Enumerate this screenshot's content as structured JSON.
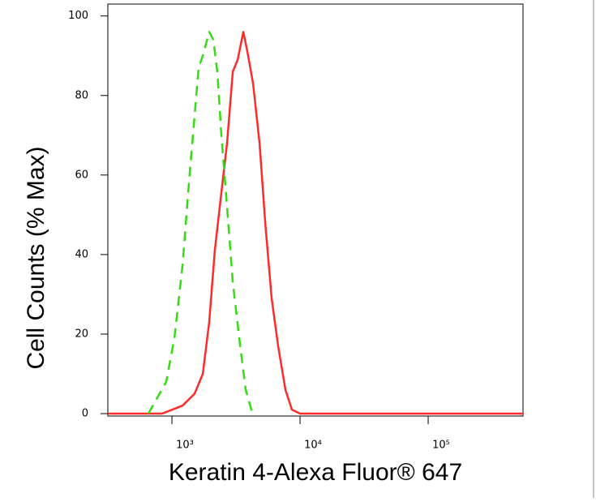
{
  "chart_data": {
    "type": "line",
    "xlabel": "Keratin 4-Alexa Fluor® 647",
    "ylabel": "Cell Counts (% Max)",
    "xscale": "log",
    "xlim": [
      316,
      550000
    ],
    "xticks": [
      {
        "value": 1000,
        "label": "10³"
      },
      {
        "value": 10000,
        "label": "10⁴"
      },
      {
        "value": 100000,
        "label": "10⁵"
      }
    ],
    "ylim": [
      0,
      103
    ],
    "yticks": [
      0,
      20,
      40,
      60,
      80,
      100
    ],
    "series": [
      {
        "color": "#ff2a2a",
        "linestyle": "solid",
        "x": [
          316,
          839,
          1208,
          1504,
          1740,
          1955,
          2162,
          2399,
          2692,
          2985,
          3259,
          3607,
          3880,
          4297,
          4831,
          5349,
          6005,
          6742,
          7692,
          8641,
          10000,
          550000
        ],
        "values": [
          0,
          0,
          2,
          5,
          10,
          23,
          41,
          54,
          68,
          86,
          89,
          96,
          91,
          83,
          68,
          48,
          29,
          17,
          6,
          1,
          0,
          0
        ]
      },
      {
        "color": "#33dd11",
        "linestyle": "dashed",
        "x": [
          655,
          903,
          1045,
          1208,
          1358,
          1504,
          1617,
          1740,
          1955,
          2104,
          2261,
          2432,
          2692,
          2985,
          3352,
          3767,
          4170,
          4688
        ],
        "values": [
          0,
          8,
          19,
          37,
          58,
          75,
          87,
          90,
          96,
          94,
          86,
          70,
          52,
          33,
          19,
          6,
          1,
          0
        ]
      }
    ]
  }
}
